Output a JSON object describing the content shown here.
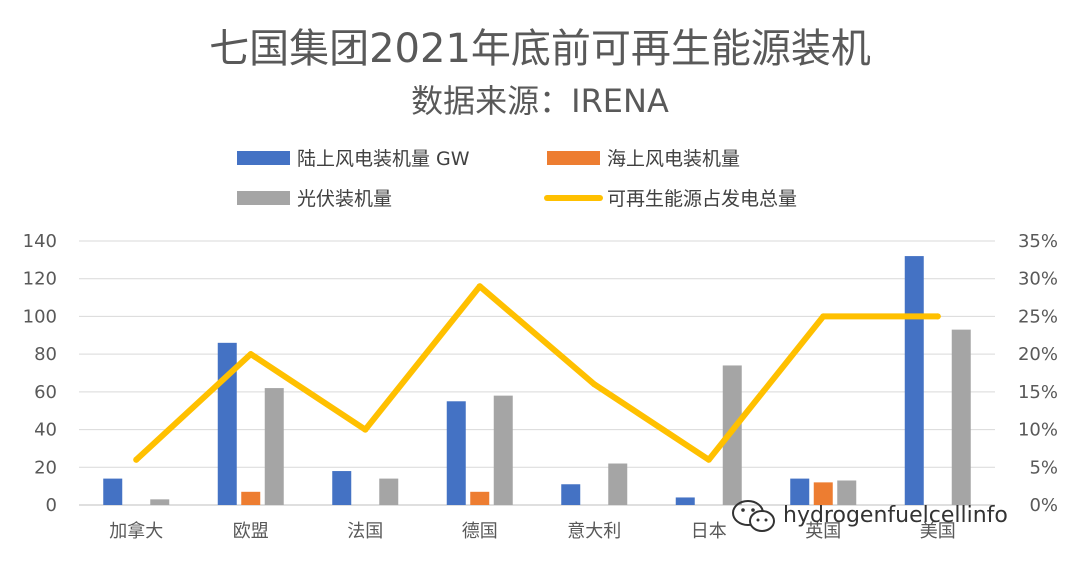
{
  "chart_data": {
    "type": "bar",
    "title": "七国集团2021年底前可再生能源装机",
    "subtitle": "数据来源：IRENA",
    "categories": [
      "加拿大",
      "欧盟",
      "法国",
      "德国",
      "意大利",
      "日本",
      "英国",
      "美国"
    ],
    "series": [
      {
        "name": "陆上风电装机量 GW",
        "type": "bar",
        "axis": "left",
        "color": "#4472C4",
        "values": [
          14,
          86,
          18,
          55,
          11,
          4,
          14,
          132
        ]
      },
      {
        "name": "海上风电装机量",
        "type": "bar",
        "axis": "left",
        "color": "#ED7D31",
        "values": [
          0,
          7,
          0,
          7,
          0,
          0,
          12,
          0
        ]
      },
      {
        "name": "光伏装机量",
        "type": "bar",
        "axis": "left",
        "color": "#A5A5A5",
        "values": [
          3,
          62,
          14,
          58,
          22,
          74,
          13,
          93
        ]
      },
      {
        "name": "可再生能源占发电总量",
        "type": "line",
        "axis": "right",
        "color": "#FFC000",
        "values": [
          0.06,
          0.2,
          0.1,
          0.29,
          0.16,
          0.06,
          0.25,
          0.25
        ]
      }
    ],
    "yleft": {
      "min": 0,
      "max": 140,
      "ticks": [
        "0",
        "20",
        "40",
        "60",
        "80",
        "100",
        "120",
        "140"
      ]
    },
    "yright": {
      "min": 0,
      "max": 0.35,
      "ticks": [
        "0%",
        "5%",
        "10%",
        "15%",
        "20%",
        "25%",
        "30%",
        "35%"
      ]
    },
    "grid": true,
    "legend_position": "top"
  },
  "watermark": {
    "text": "hydrogenfuelcellinfo",
    "icon": "wechat-icon"
  }
}
